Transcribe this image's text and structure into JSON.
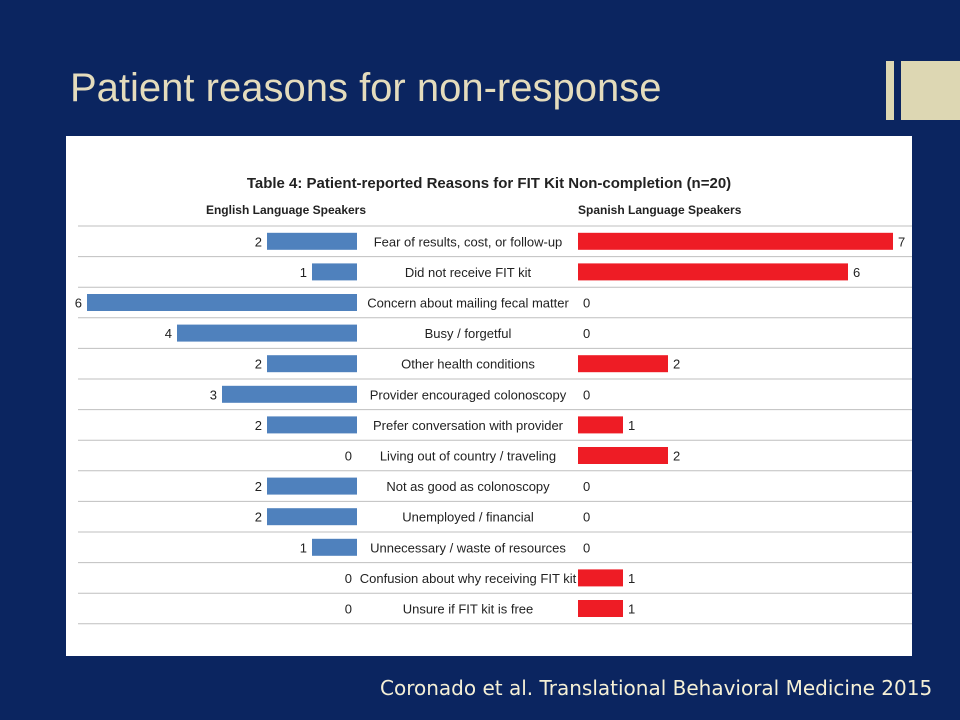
{
  "slide": {
    "title": "Patient reasons for non-response",
    "citation": "Coronado et al. Translational Behavioral Medicine 2015"
  },
  "colors": {
    "background": "#0b2560",
    "title": "#e4dcbd",
    "accent": "#ddd7b3",
    "english_bar": "#4f81bd",
    "spanish_bar": "#ee1c25"
  },
  "chart_data": {
    "type": "bar",
    "title": "Table 4: Patient-reported Reasons for FIT Kit Non-completion (n=20)",
    "categories": [
      "Fear of results, cost, or follow-up",
      "Did not receive FIT kit",
      "Concern about mailing fecal matter",
      "Busy / forgetful",
      "Other health conditions",
      "Provider encouraged colonoscopy",
      "Prefer conversation with provider",
      "Living out of country / traveling",
      "Not as good as colonoscopy",
      "Unemployed / financial",
      "Unnecessary / waste of resources",
      "Confusion about why receiving FIT kit",
      "Unsure if FIT kit is free"
    ],
    "series": [
      {
        "name": "English Language Speakers",
        "values": [
          2,
          1,
          6,
          4,
          2,
          3,
          2,
          0,
          2,
          2,
          1,
          0,
          0
        ]
      },
      {
        "name": "Spanish Language Speakers",
        "values": [
          7,
          6,
          0,
          0,
          2,
          0,
          1,
          2,
          0,
          0,
          0,
          1,
          1
        ]
      }
    ],
    "xlim": [
      0,
      7
    ],
    "grid": true,
    "orientation": "back-to-back horizontal"
  }
}
